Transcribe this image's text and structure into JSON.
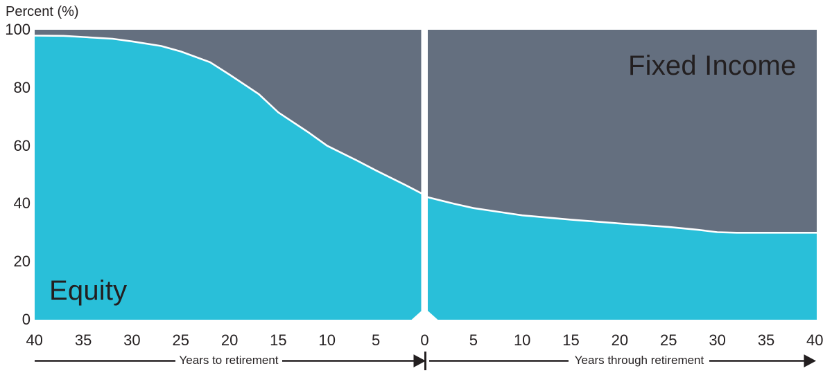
{
  "chart_data": {
    "type": "area",
    "title": "",
    "ylabel": "Percent (%)",
    "ylim": [
      0,
      100
    ],
    "y_ticks": [
      100,
      80,
      60,
      40,
      20,
      0
    ],
    "grid": false,
    "legend_position": "in-plot labels",
    "x_axis": {
      "left_arrow_label": "Years to retirement",
      "right_arrow_label": "Years through retirement",
      "left_ticks": [
        40,
        35,
        30,
        25,
        20,
        15,
        10,
        5
      ],
      "center_tick": 0,
      "right_ticks": [
        5,
        10,
        15,
        20,
        25,
        30,
        35,
        40
      ]
    },
    "area_labels": {
      "equity": "Equity",
      "fixed_income": "Fixed Income"
    },
    "colors": {
      "equity": "#29bfd9",
      "fixed_income": "#646f7f",
      "divider": "#ffffff",
      "curve_stroke": "#ffffff",
      "text": "#231f20"
    },
    "retirement_divider_t": 0,
    "series": [
      {
        "name": "Equity",
        "color": "#29bfd9",
        "points": [
          [
            -40,
            98
          ],
          [
            -37,
            97.9
          ],
          [
            -35,
            97.5
          ],
          [
            -32,
            96.9
          ],
          [
            -30,
            96
          ],
          [
            -27,
            94.4
          ],
          [
            -25,
            92.5
          ],
          [
            -22,
            88.8
          ],
          [
            -20,
            84.5
          ],
          [
            -17,
            77.8
          ],
          [
            -15,
            71.5
          ],
          [
            -12,
            64.8
          ],
          [
            -10,
            60
          ],
          [
            -7,
            55
          ],
          [
            -5,
            51.5
          ],
          [
            -2,
            46.5
          ],
          [
            0,
            43
          ],
          [
            0,
            42.5
          ],
          [
            3,
            40
          ],
          [
            5,
            38.5
          ],
          [
            8,
            37
          ],
          [
            10,
            36
          ],
          [
            15,
            34.5
          ],
          [
            20,
            33.2
          ],
          [
            25,
            32
          ],
          [
            28,
            31
          ],
          [
            30,
            30.2
          ],
          [
            32,
            30
          ],
          [
            36,
            30
          ],
          [
            40,
            30
          ]
        ]
      },
      {
        "name": "Fixed Income",
        "color": "#646f7f",
        "points": [
          [
            -40,
            2
          ],
          [
            -35,
            2.5
          ],
          [
            -30,
            4
          ],
          [
            -25,
            7.5
          ],
          [
            -20,
            15.5
          ],
          [
            -15,
            28.5
          ],
          [
            -10,
            40
          ],
          [
            -5,
            48.5
          ],
          [
            0,
            57
          ],
          [
            5,
            61.5
          ],
          [
            10,
            64
          ],
          [
            15,
            65.5
          ],
          [
            20,
            66.8
          ],
          [
            25,
            68
          ],
          [
            30,
            69.8
          ],
          [
            35,
            70
          ],
          [
            40,
            70
          ]
        ]
      }
    ]
  }
}
